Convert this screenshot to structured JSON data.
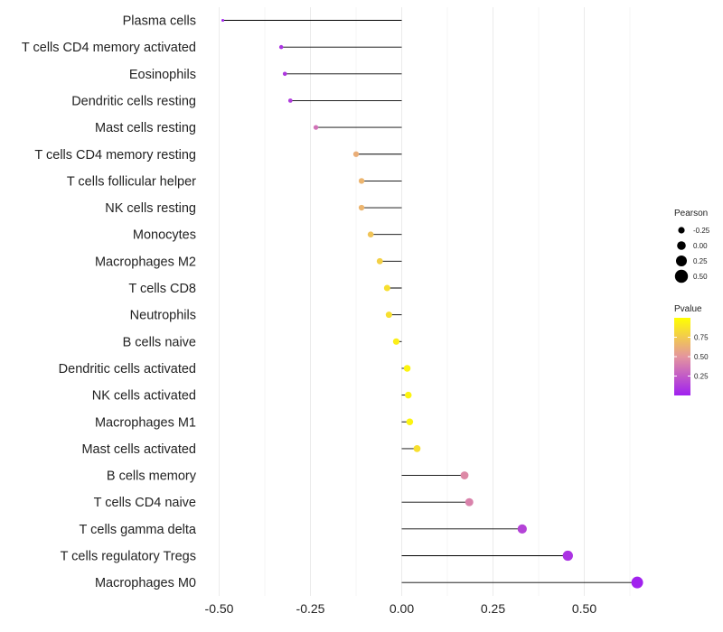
{
  "chart_data": {
    "type": "lollipop",
    "title": "",
    "xlabel": "",
    "ylabel": "",
    "xlim": [
      -0.52,
      0.66
    ],
    "x_ticks": [
      -0.5,
      -0.25,
      0.0,
      0.25,
      0.5
    ],
    "x_tick_labels": [
      "-0.50",
      "-0.25",
      "0.00",
      "0.25",
      "0.50"
    ],
    "grid": true,
    "categories": [
      "Plasma cells",
      "T cells CD4 memory activated",
      "Eosinophils",
      "Dendritic cells resting",
      "Mast cells resting",
      "T cells CD4 memory resting",
      "T cells follicular helper",
      "NK cells resting",
      "Monocytes",
      "Macrophages M2",
      "T cells CD8",
      "Neutrophils",
      "B cells naive",
      "Dendritic cells activated",
      "NK cells activated",
      "Macrophages M1",
      "Mast cells activated",
      "B cells memory",
      "T cells CD4 naive",
      "T cells gamma delta",
      "T cells regulatory  Tregs",
      "Macrophages M0"
    ],
    "values": [
      -0.49,
      -0.33,
      -0.32,
      -0.305,
      -0.235,
      -0.125,
      -0.11,
      -0.11,
      -0.085,
      -0.06,
      -0.04,
      -0.035,
      -0.015,
      0.015,
      0.018,
      0.022,
      0.042,
      0.172,
      0.185,
      0.33,
      0.455,
      0.645
    ],
    "pvalues": [
      0.02,
      0.08,
      0.1,
      0.12,
      0.35,
      0.62,
      0.65,
      0.65,
      0.72,
      0.78,
      0.85,
      0.85,
      0.92,
      0.95,
      0.95,
      0.95,
      0.85,
      0.45,
      0.42,
      0.15,
      0.08,
      0.01
    ],
    "legend_size": {
      "title": "Pearson",
      "labels": [
        "-0.25",
        "0.00",
        "0.25",
        "0.50"
      ],
      "values": [
        -0.25,
        0.0,
        0.25,
        0.5
      ]
    },
    "legend_color": {
      "title": "Pvalue",
      "labels": [
        "0.75",
        "0.50",
        "0.25"
      ],
      "values": [
        0.75,
        0.5,
        0.25
      ],
      "range": [
        0.0,
        1.0
      ],
      "low_color": "#a020f0",
      "mid_color": "#e4959e",
      "high_color": "#ffff00"
    },
    "colors": {
      "stem": "#000000",
      "grid": "#ebebeb",
      "text": "#222222"
    },
    "legend_placement": "right"
  }
}
